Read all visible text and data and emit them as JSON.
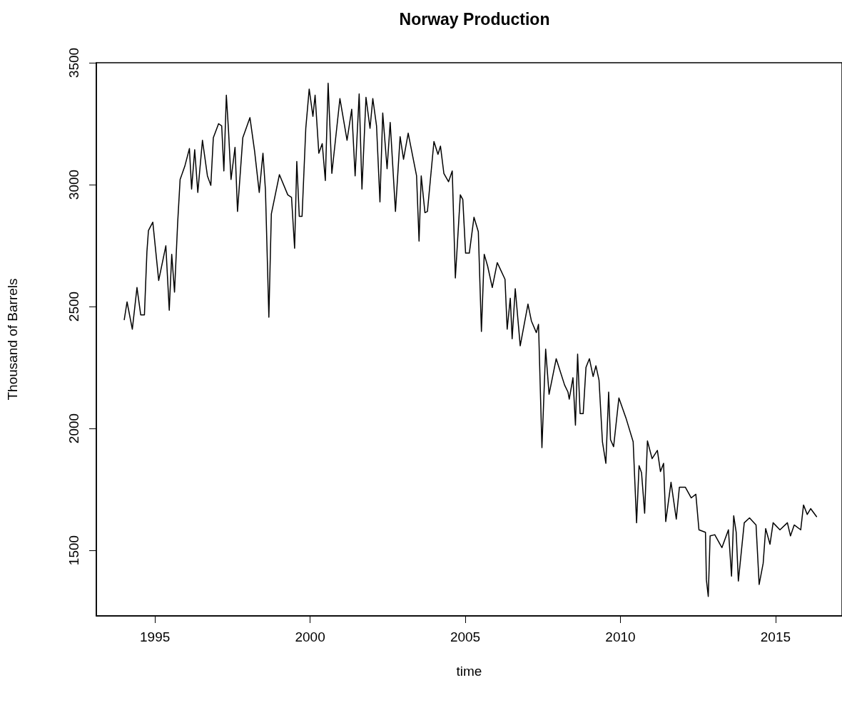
{
  "chart_data": {
    "type": "line",
    "title": "Norway Production",
    "xlabel": "time",
    "ylabel": "Thousand of Barrels",
    "xlim": [
      1993.11,
      2017.14
    ],
    "xticks": [
      1995,
      2000,
      2005,
      2010,
      2015
    ],
    "ylim": [
      1231,
      3500
    ],
    "yticks": [
      1500,
      2000,
      2500,
      3000,
      3500
    ],
    "grid": false,
    "series": [
      {
        "color": "#000000",
        "x": [
          1994.01,
          1994.1,
          1994.27,
          1994.42,
          1994.54,
          1994.66,
          1994.74,
          1994.79,
          1994.93,
          1995.12,
          1995.35,
          1995.46,
          1995.54,
          1995.63,
          1995.73,
          1995.81,
          1995.96,
          1996.11,
          1996.18,
          1996.28,
          1996.38,
          1996.53,
          1996.69,
          1996.8,
          1996.88,
          1997.05,
          1997.15,
          1997.22,
          1997.3,
          1997.37,
          1997.45,
          1997.58,
          1997.66,
          1997.83,
          1998.06,
          1998.21,
          1998.36,
          1998.48,
          1998.56,
          1998.67,
          1998.75,
          1999.01,
          1999.28,
          1999.4,
          1999.5,
          1999.57,
          1999.65,
          1999.74,
          1999.86,
          1999.97,
          2000.09,
          2000.16,
          2000.28,
          2000.39,
          2000.49,
          2000.58,
          2000.7,
          2000.96,
          2001.19,
          2001.34,
          2001.45,
          2001.58,
          2001.67,
          2001.8,
          2001.93,
          2002.02,
          2002.14,
          2002.25,
          2002.34,
          2002.48,
          2002.58,
          2002.75,
          2002.9,
          2003.01,
          2003.16,
          2003.43,
          2003.51,
          2003.58,
          2003.7,
          2003.78,
          2003.99,
          2004.12,
          2004.2,
          2004.31,
          2004.46,
          2004.58,
          2004.68,
          2004.84,
          2004.92,
          2005.01,
          2005.13,
          2005.28,
          2005.42,
          2005.52,
          2005.61,
          2005.72,
          2005.87,
          2006.03,
          2006.28,
          2006.35,
          2006.45,
          2006.51,
          2006.61,
          2006.77,
          2007.02,
          2007.13,
          2007.29,
          2007.36,
          2007.47,
          2007.59,
          2007.7,
          2007.93,
          2008.2,
          2008.31,
          2008.35,
          2008.47,
          2008.55,
          2008.62,
          2008.7,
          2008.8,
          2008.89,
          2009.0,
          2009.12,
          2009.21,
          2009.31,
          2009.42,
          2009.53,
          2009.62,
          2009.68,
          2009.78,
          2009.95,
          2010.18,
          2010.41,
          2010.52,
          2010.6,
          2010.68,
          2010.78,
          2010.87,
          2011.02,
          2011.19,
          2011.29,
          2011.39,
          2011.46,
          2011.63,
          2011.8,
          2011.9,
          2012.09,
          2012.28,
          2012.43,
          2012.53,
          2012.74,
          2012.77,
          2012.83,
          2012.89,
          2013.04,
          2013.27,
          2013.48,
          2013.58,
          2013.65,
          2013.73,
          2013.8,
          2013.99,
          2014.16,
          2014.37,
          2014.47,
          2014.6,
          2014.68,
          2014.82,
          2014.92,
          2015.14,
          2015.38,
          2015.48,
          2015.6,
          2015.81,
          2015.9,
          2016.02,
          2016.13,
          2016.32
        ],
        "values": [
          2446,
          2519,
          2407,
          2578,
          2466,
          2466,
          2724,
          2812,
          2846,
          2607,
          2749,
          2485,
          2714,
          2559,
          2841,
          3021,
          3075,
          3148,
          2982,
          3143,
          2968,
          3182,
          3036,
          2997,
          3192,
          3250,
          3241,
          3056,
          3367,
          3221,
          3021,
          3153,
          2890,
          3192,
          3275,
          3138,
          2968,
          3129,
          2978,
          2456,
          2880,
          3041,
          2958,
          2948,
          2739,
          3095,
          2870,
          2870,
          3231,
          3392,
          3280,
          3367,
          3129,
          3168,
          3017,
          3416,
          3046,
          3353,
          3182,
          3309,
          3036,
          3372,
          2982,
          3358,
          3231,
          3353,
          3241,
          2929,
          3294,
          3065,
          3255,
          2890,
          3197,
          3104,
          3211,
          3036,
          2768,
          3036,
          2885,
          2890,
          3177,
          3124,
          3158,
          3046,
          3012,
          3056,
          2617,
          2958,
          2939,
          2719,
          2719,
          2866,
          2807,
          2398,
          2714,
          2666,
          2578,
          2680,
          2612,
          2407,
          2534,
          2368,
          2573,
          2339,
          2510,
          2441,
          2393,
          2427,
          1921,
          2325,
          2140,
          2286,
          2178,
          2149,
          2120,
          2208,
          2013,
          2305,
          2061,
          2061,
          2251,
          2286,
          2213,
          2257,
          2198,
          1945,
          1857,
          2149,
          1954,
          1925,
          2125,
          2042,
          1945,
          1613,
          1847,
          1818,
          1652,
          1949,
          1876,
          1910,
          1823,
          1857,
          1618,
          1779,
          1628,
          1759,
          1759,
          1715,
          1730,
          1584,
          1574,
          1379,
          1311,
          1559,
          1564,
          1511,
          1584,
          1394,
          1642,
          1574,
          1374,
          1613,
          1633,
          1604,
          1360,
          1447,
          1589,
          1525,
          1613,
          1584,
          1613,
          1559,
          1604,
          1584,
          1686,
          1647,
          1671,
          1638
        ]
      }
    ]
  }
}
